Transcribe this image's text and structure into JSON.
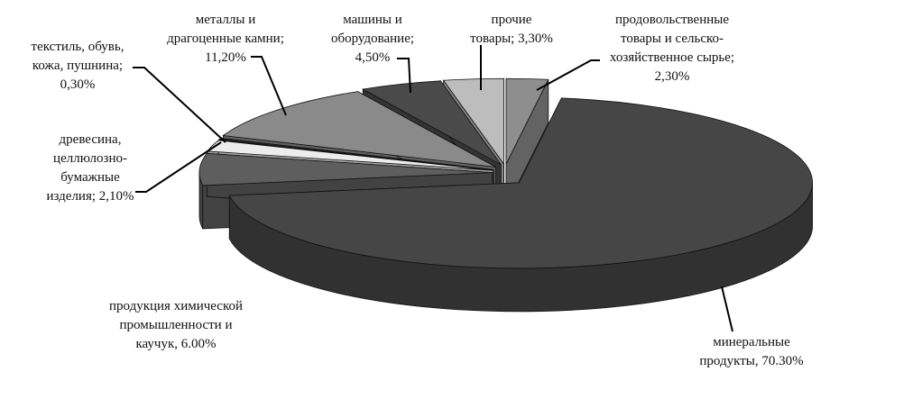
{
  "chart_data": {
    "type": "pie",
    "style": "3d-exploded",
    "start": "top, clockwise",
    "slices": [
      {
        "label": "продовольственные\nтовары и сельско-\nхозяйственное сырье;\n2,30%",
        "name": "продовольственные товары и сельскохозяйственное сырье",
        "value": 2.3,
        "color": "#8e8e8e"
      },
      {
        "label": "минеральные\nпродукты, 70.30%",
        "name": "минеральные продукты",
        "value": 70.3,
        "color": "#464646"
      },
      {
        "label": "продукция химической\nпромышленности и\nкаучук, 6.00%",
        "name": "продукция химической промышленности и каучук",
        "value": 6.0,
        "color": "#5e5e5e"
      },
      {
        "label": "древесина,\nцеллюлозно-\nбумажные\nизделия; 2,10%",
        "name": "древесина, целлюлозно-бумажные изделия",
        "value": 2.1,
        "color": "#ececec"
      },
      {
        "label": "текстиль, обувь,\nкожа, пушнина;\n0,30%",
        "name": "текстиль, обувь, кожа, пушнина",
        "value": 0.3,
        "color": "#2a2a2a"
      },
      {
        "label": "металлы и\nдрагоценные камни;\n11,20%",
        "name": "металлы и драгоценные камни",
        "value": 11.2,
        "color": "#8a8a8a"
      },
      {
        "label": "машины и\nоборудование;\n4,50%",
        "name": "машины и оборудование",
        "value": 4.5,
        "color": "#4a4a4a"
      },
      {
        "label": "прочие\nтовары; 3,30%",
        "name": "прочие товары",
        "value": 3.3,
        "color": "#bdbdbd"
      }
    ]
  }
}
